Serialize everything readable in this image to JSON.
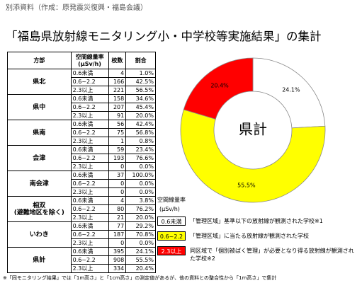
{
  "header": {
    "note": "別添資料（作成：原発震災復興・福島会議）",
    "title": "「福島県放射線モニタリング小・中学校等実施結果」の集計"
  },
  "table": {
    "header": [
      "方部",
      "空間線量率\n(μSv/h)",
      "校数",
      "割合"
    ],
    "groups": [
      {
        "region": "県北",
        "rows": [
          [
            "0.6未満",
            "4",
            "1.0%"
          ],
          [
            "0.6~2.2",
            "166",
            "42.5%"
          ],
          [
            "2.3以上",
            "221",
            "56.5%"
          ]
        ]
      },
      {
        "region": "県中",
        "rows": [
          [
            "0.6未満",
            "158",
            "34.6%"
          ],
          [
            "0.6~2.2",
            "207",
            "45.4%"
          ],
          [
            "2.3以上",
            "91",
            "20.0%"
          ]
        ]
      },
      {
        "region": "県南",
        "rows": [
          [
            "0.6未満",
            "56",
            "42.4%"
          ],
          [
            "0.6~2.2",
            "75",
            "56.8%"
          ],
          [
            "2.3以上",
            "1",
            "0.8%"
          ]
        ]
      },
      {
        "region": "会津",
        "rows": [
          [
            "0.6未満",
            "59",
            "23.4%"
          ],
          [
            "0.6~2.2",
            "193",
            "76.6%"
          ],
          [
            "2.3以上",
            "0",
            "0.0%"
          ]
        ]
      },
      {
        "region": "南会津",
        "rows": [
          [
            "0.6未満",
            "37",
            "100.0%"
          ],
          [
            "0.6~2.2",
            "0",
            "0.0%"
          ],
          [
            "2.3以上",
            "0",
            "0.0%"
          ]
        ]
      },
      {
        "region": "相双\n(避難地区を除く)",
        "rows": [
          [
            "0.6未満",
            "4",
            "3.8%"
          ],
          [
            "0.6~2.2",
            "80",
            "76.2%"
          ],
          [
            "2.3以上",
            "21",
            "20.0%"
          ]
        ]
      },
      {
        "region": "いわき",
        "rows": [
          [
            "0.6未満",
            "77",
            "29.2%"
          ],
          [
            "0.6~2.2",
            "187",
            "70.8%"
          ],
          [
            "2.3以上",
            "0",
            "0.0%"
          ]
        ]
      },
      {
        "region": "県計",
        "rows": [
          [
            "0.6未満",
            "395",
            "24.1%"
          ],
          [
            "0.6~2.2",
            "908",
            "55.5%"
          ],
          [
            "2.3以上",
            "334",
            "20.4%"
          ]
        ]
      }
    ]
  },
  "donut": {
    "center": "県計",
    "values": [
      24.1,
      55.5,
      20.4
    ],
    "value_labels": [
      "24.1%",
      "55.5%",
      "20.4%"
    ],
    "colors": [
      "#ffffff",
      "#ffff00",
      "#ff0000"
    ]
  },
  "legend": {
    "title": "空間線量率",
    "unit": "(μSv/h)",
    "items": [
      {
        "label": "0.6未満",
        "color": "#ffffff",
        "text": "「管理区域」基準以下の放射線が観測された学校※1"
      },
      {
        "label": "0.6~2.2",
        "color": "#ffff00",
        "text": "「管理区域」に当たる放射線が観測された学校"
      },
      {
        "label": "2.3以上",
        "color": "#ff0000",
        "text": "同区域で「個別被ばく管理」が必要となり得る放射線が観測された学校※2"
      }
    ]
  },
  "footnote": "※「同モニタリング結果」では「1m高さ」と「1cm高さ」の測定値があるが、他の資料との整合性から「1m高さ」で集計"
}
